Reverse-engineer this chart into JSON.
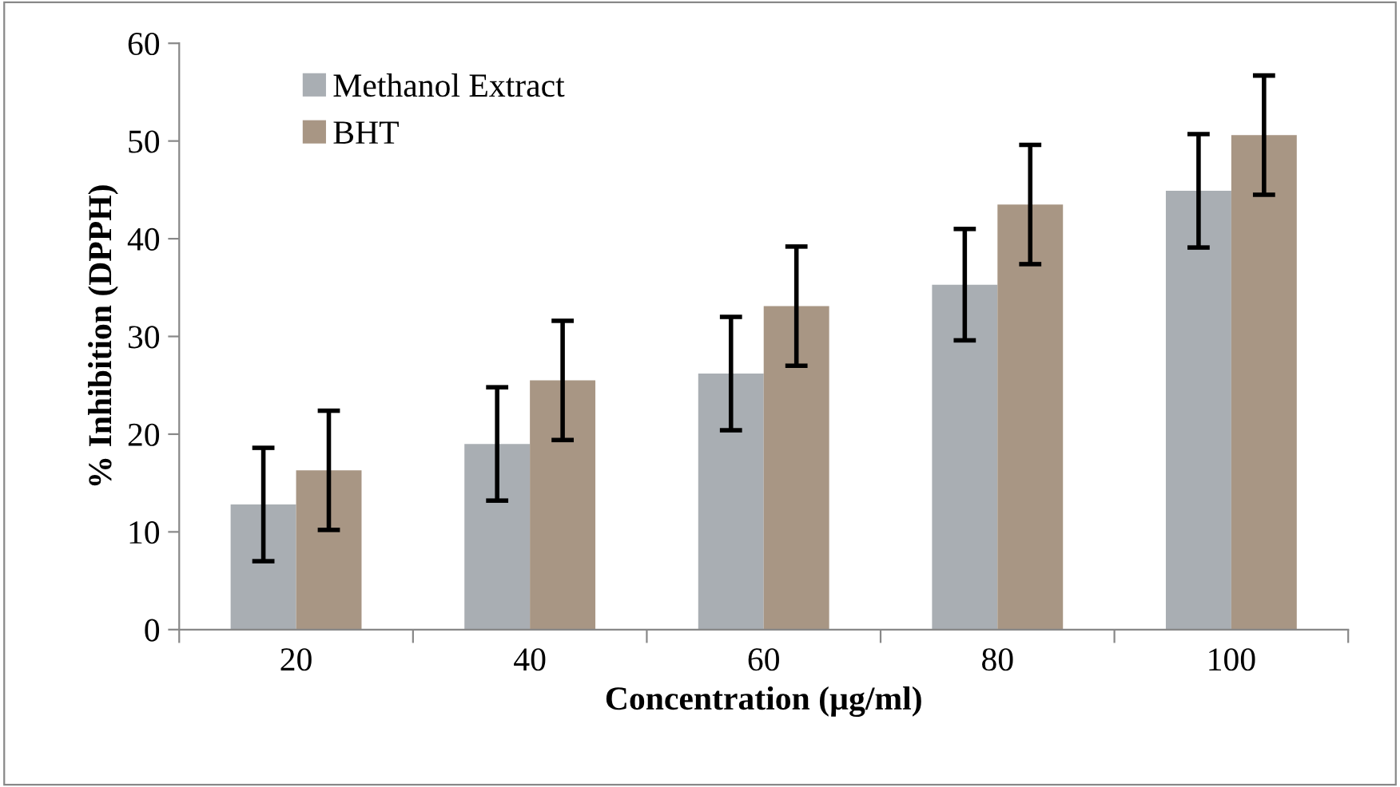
{
  "chart_data": {
    "type": "bar",
    "xlabel": "Concentration (µg/ml)",
    "ylabel": "% Inhibition (DPPH)",
    "categories": [
      "20",
      "40",
      "60",
      "80",
      "100"
    ],
    "series": [
      {
        "name": "Methanol Extract",
        "color": "#a9aeb3",
        "values": [
          12.8,
          19.0,
          26.2,
          35.3,
          44.9
        ],
        "errors": [
          5.8,
          5.8,
          5.8,
          5.7,
          5.8
        ]
      },
      {
        "name": "BHT",
        "color": "#a89684",
        "values": [
          16.3,
          25.5,
          33.1,
          43.5,
          50.6
        ],
        "errors": [
          6.1,
          6.1,
          6.1,
          6.1,
          6.1
        ]
      }
    ],
    "ylim": [
      0,
      60
    ],
    "yticks": [
      0,
      10,
      20,
      30,
      40,
      50,
      60
    ],
    "grid": false,
    "legend": "top left"
  }
}
